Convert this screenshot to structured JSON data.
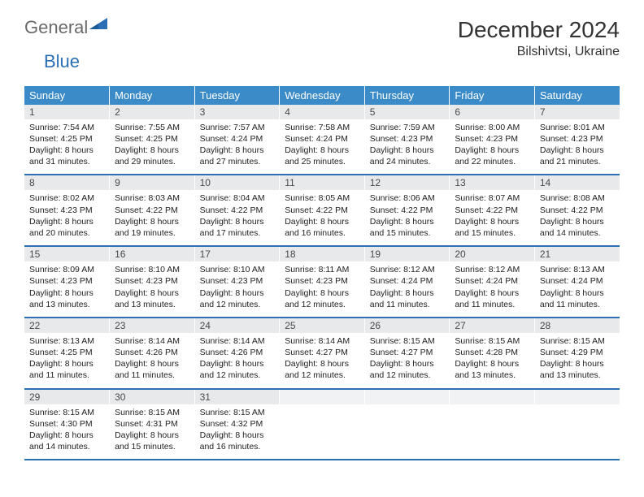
{
  "brand": {
    "name_part1": "General",
    "name_part2": "Blue",
    "colors": {
      "gray": "#6a6a6a",
      "blue": "#2a6fb5",
      "header_bg": "#3b8bc9",
      "dayrow_bg": "#e7e9eb"
    }
  },
  "title": "December 2024",
  "location": "Bilshivtsi, Ukraine",
  "dow": [
    "Sunday",
    "Monday",
    "Tuesday",
    "Wednesday",
    "Thursday",
    "Friday",
    "Saturday"
  ],
  "days": [
    {
      "n": 1,
      "sr": "7:54 AM",
      "ss": "4:25 PM",
      "dl": "8 hours and 31 minutes."
    },
    {
      "n": 2,
      "sr": "7:55 AM",
      "ss": "4:25 PM",
      "dl": "8 hours and 29 minutes."
    },
    {
      "n": 3,
      "sr": "7:57 AM",
      "ss": "4:24 PM",
      "dl": "8 hours and 27 minutes."
    },
    {
      "n": 4,
      "sr": "7:58 AM",
      "ss": "4:24 PM",
      "dl": "8 hours and 25 minutes."
    },
    {
      "n": 5,
      "sr": "7:59 AM",
      "ss": "4:23 PM",
      "dl": "8 hours and 24 minutes."
    },
    {
      "n": 6,
      "sr": "8:00 AM",
      "ss": "4:23 PM",
      "dl": "8 hours and 22 minutes."
    },
    {
      "n": 7,
      "sr": "8:01 AM",
      "ss": "4:23 PM",
      "dl": "8 hours and 21 minutes."
    },
    {
      "n": 8,
      "sr": "8:02 AM",
      "ss": "4:23 PM",
      "dl": "8 hours and 20 minutes."
    },
    {
      "n": 9,
      "sr": "8:03 AM",
      "ss": "4:22 PM",
      "dl": "8 hours and 19 minutes."
    },
    {
      "n": 10,
      "sr": "8:04 AM",
      "ss": "4:22 PM",
      "dl": "8 hours and 17 minutes."
    },
    {
      "n": 11,
      "sr": "8:05 AM",
      "ss": "4:22 PM",
      "dl": "8 hours and 16 minutes."
    },
    {
      "n": 12,
      "sr": "8:06 AM",
      "ss": "4:22 PM",
      "dl": "8 hours and 15 minutes."
    },
    {
      "n": 13,
      "sr": "8:07 AM",
      "ss": "4:22 PM",
      "dl": "8 hours and 15 minutes."
    },
    {
      "n": 14,
      "sr": "8:08 AM",
      "ss": "4:22 PM",
      "dl": "8 hours and 14 minutes."
    },
    {
      "n": 15,
      "sr": "8:09 AM",
      "ss": "4:23 PM",
      "dl": "8 hours and 13 minutes."
    },
    {
      "n": 16,
      "sr": "8:10 AM",
      "ss": "4:23 PM",
      "dl": "8 hours and 13 minutes."
    },
    {
      "n": 17,
      "sr": "8:10 AM",
      "ss": "4:23 PM",
      "dl": "8 hours and 12 minutes."
    },
    {
      "n": 18,
      "sr": "8:11 AM",
      "ss": "4:23 PM",
      "dl": "8 hours and 12 minutes."
    },
    {
      "n": 19,
      "sr": "8:12 AM",
      "ss": "4:24 PM",
      "dl": "8 hours and 11 minutes."
    },
    {
      "n": 20,
      "sr": "8:12 AM",
      "ss": "4:24 PM",
      "dl": "8 hours and 11 minutes."
    },
    {
      "n": 21,
      "sr": "8:13 AM",
      "ss": "4:24 PM",
      "dl": "8 hours and 11 minutes."
    },
    {
      "n": 22,
      "sr": "8:13 AM",
      "ss": "4:25 PM",
      "dl": "8 hours and 11 minutes."
    },
    {
      "n": 23,
      "sr": "8:14 AM",
      "ss": "4:26 PM",
      "dl": "8 hours and 11 minutes."
    },
    {
      "n": 24,
      "sr": "8:14 AM",
      "ss": "4:26 PM",
      "dl": "8 hours and 12 minutes."
    },
    {
      "n": 25,
      "sr": "8:14 AM",
      "ss": "4:27 PM",
      "dl": "8 hours and 12 minutes."
    },
    {
      "n": 26,
      "sr": "8:15 AM",
      "ss": "4:27 PM",
      "dl": "8 hours and 12 minutes."
    },
    {
      "n": 27,
      "sr": "8:15 AM",
      "ss": "4:28 PM",
      "dl": "8 hours and 13 minutes."
    },
    {
      "n": 28,
      "sr": "8:15 AM",
      "ss": "4:29 PM",
      "dl": "8 hours and 13 minutes."
    },
    {
      "n": 29,
      "sr": "8:15 AM",
      "ss": "4:30 PM",
      "dl": "8 hours and 14 minutes."
    },
    {
      "n": 30,
      "sr": "8:15 AM",
      "ss": "4:31 PM",
      "dl": "8 hours and 15 minutes."
    },
    {
      "n": 31,
      "sr": "8:15 AM",
      "ss": "4:32 PM",
      "dl": "8 hours and 16 minutes."
    }
  ],
  "labels": {
    "sunrise": "Sunrise: ",
    "sunset": "Sunset: ",
    "daylight": "Daylight: "
  },
  "layout": {
    "start_dow": 0,
    "cols": 7
  }
}
